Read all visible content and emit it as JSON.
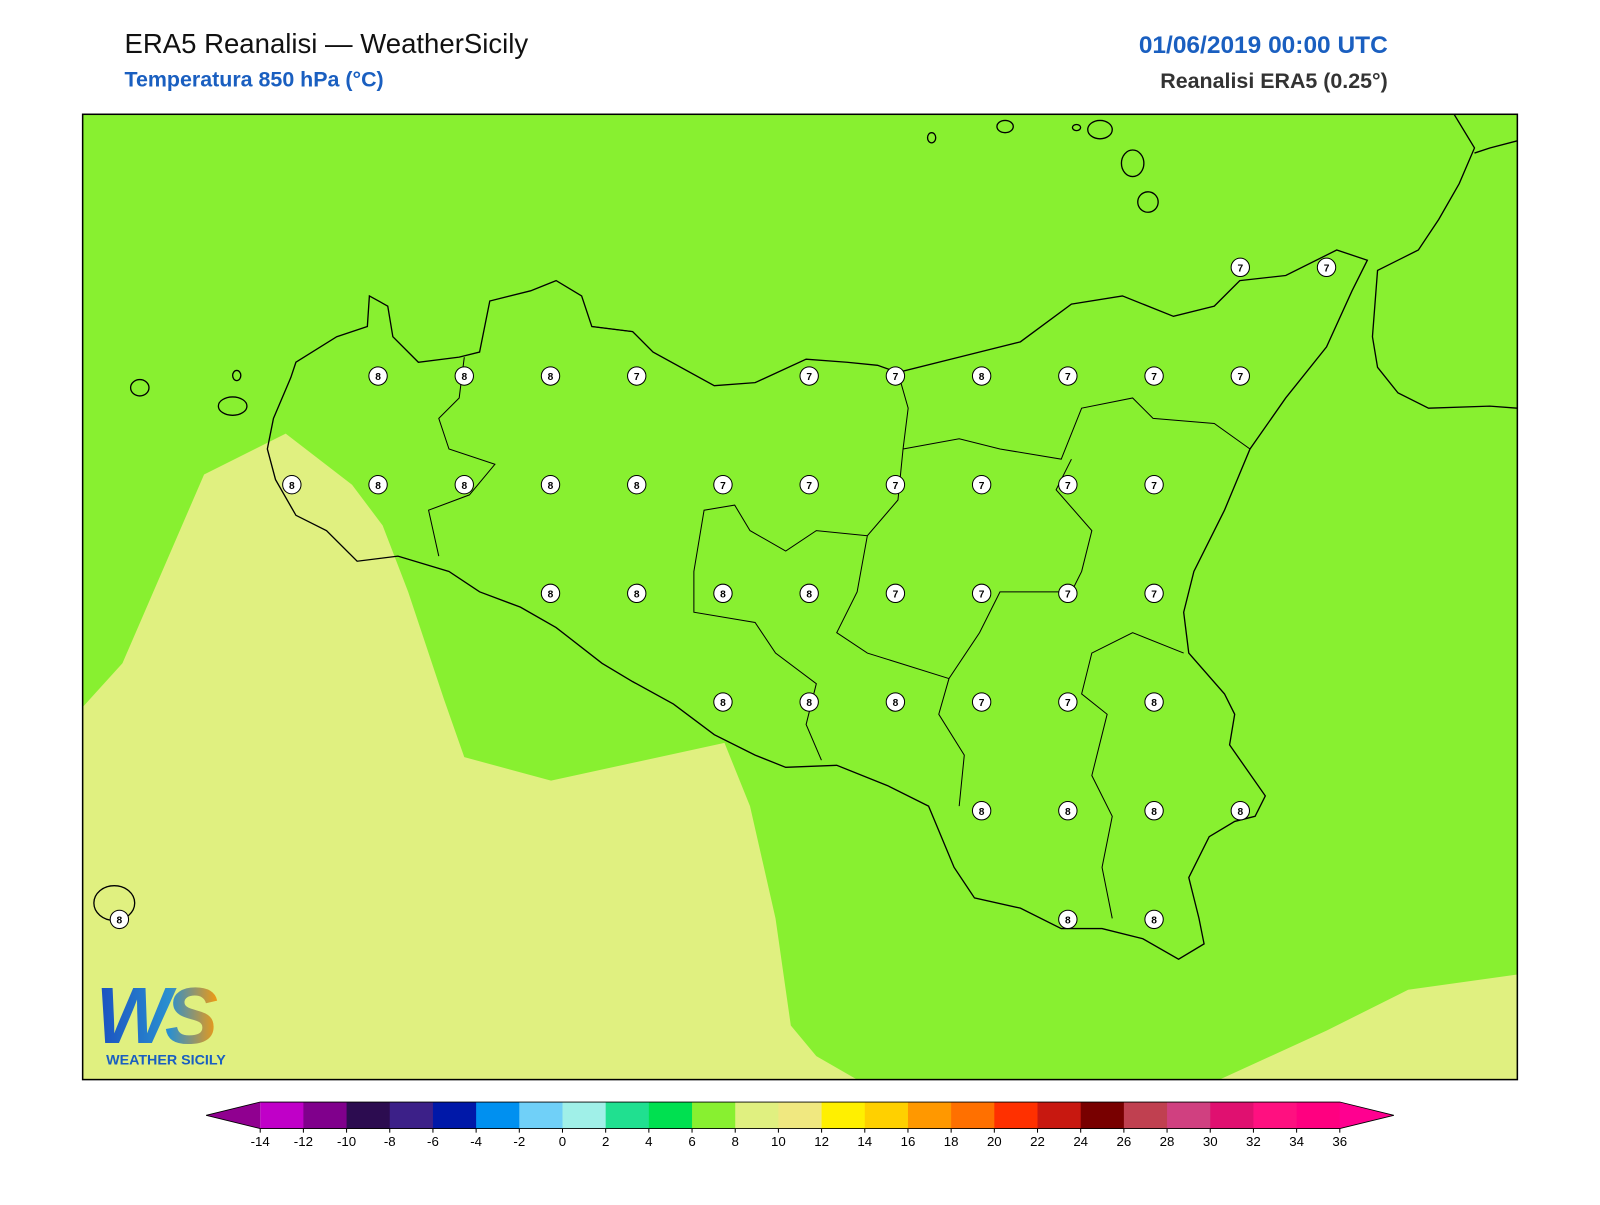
{
  "header": {
    "title": "ERA5 Reanalisi — WeatherSicily",
    "subtitle": "Temperatura 850 hPa (°C)",
    "datetime": "01/06/2019 00:00 UTC",
    "source": "Reanalisi ERA5 (0.25°)"
  },
  "map": {
    "grid": [
      [
        null,
        null,
        null,
        null,
        null,
        null,
        null,
        null,
        null,
        null,
        null,
        null,
        null,
        7,
        7
      ],
      [
        null,
        null,
        null,
        8,
        8,
        8,
        7,
        null,
        7,
        7,
        8,
        7,
        7,
        7,
        null
      ],
      [
        null,
        null,
        8,
        8,
        8,
        8,
        8,
        7,
        7,
        7,
        7,
        7,
        7,
        null,
        null
      ],
      [
        null,
        null,
        null,
        null,
        null,
        8,
        8,
        8,
        8,
        7,
        7,
        7,
        7,
        null,
        null
      ],
      [
        null,
        null,
        null,
        null,
        null,
        null,
        null,
        8,
        8,
        8,
        7,
        7,
        8,
        null,
        null
      ],
      [
        null,
        null,
        null,
        null,
        null,
        null,
        null,
        null,
        null,
        null,
        8,
        8,
        8,
        8,
        null
      ],
      [
        8,
        null,
        null,
        null,
        null,
        null,
        null,
        null,
        null,
        null,
        null,
        8,
        8,
        null,
        null
      ]
    ]
  },
  "logo": {
    "mark": "WS",
    "name": "WEATHER SICILY"
  },
  "colorbar": {
    "ticks": [
      -14,
      -12,
      -10,
      -8,
      -6,
      -4,
      -2,
      0,
      2,
      4,
      6,
      8,
      10,
      12,
      14,
      16,
      18,
      20,
      22,
      24,
      26,
      28,
      30,
      32,
      34,
      36
    ],
    "colors": [
      "#c000c8",
      "#80008c",
      "#2c0c50",
      "#3c2088",
      "#0018a8",
      "#0090f0",
      "#70d0f8",
      "#a0f0e8",
      "#20e090",
      "#00e050",
      "#88f030",
      "#e0f080",
      "#f0e880",
      "#fff000",
      "#ffd000",
      "#ff9800",
      "#ff7000",
      "#ff3000",
      "#c81810",
      "#780000",
      "#c04050",
      "#d04080",
      "#e01070",
      "#ff1080",
      "#ff0080"
    ],
    "extend_colors": [
      "#900090",
      "#ff0090"
    ]
  }
}
